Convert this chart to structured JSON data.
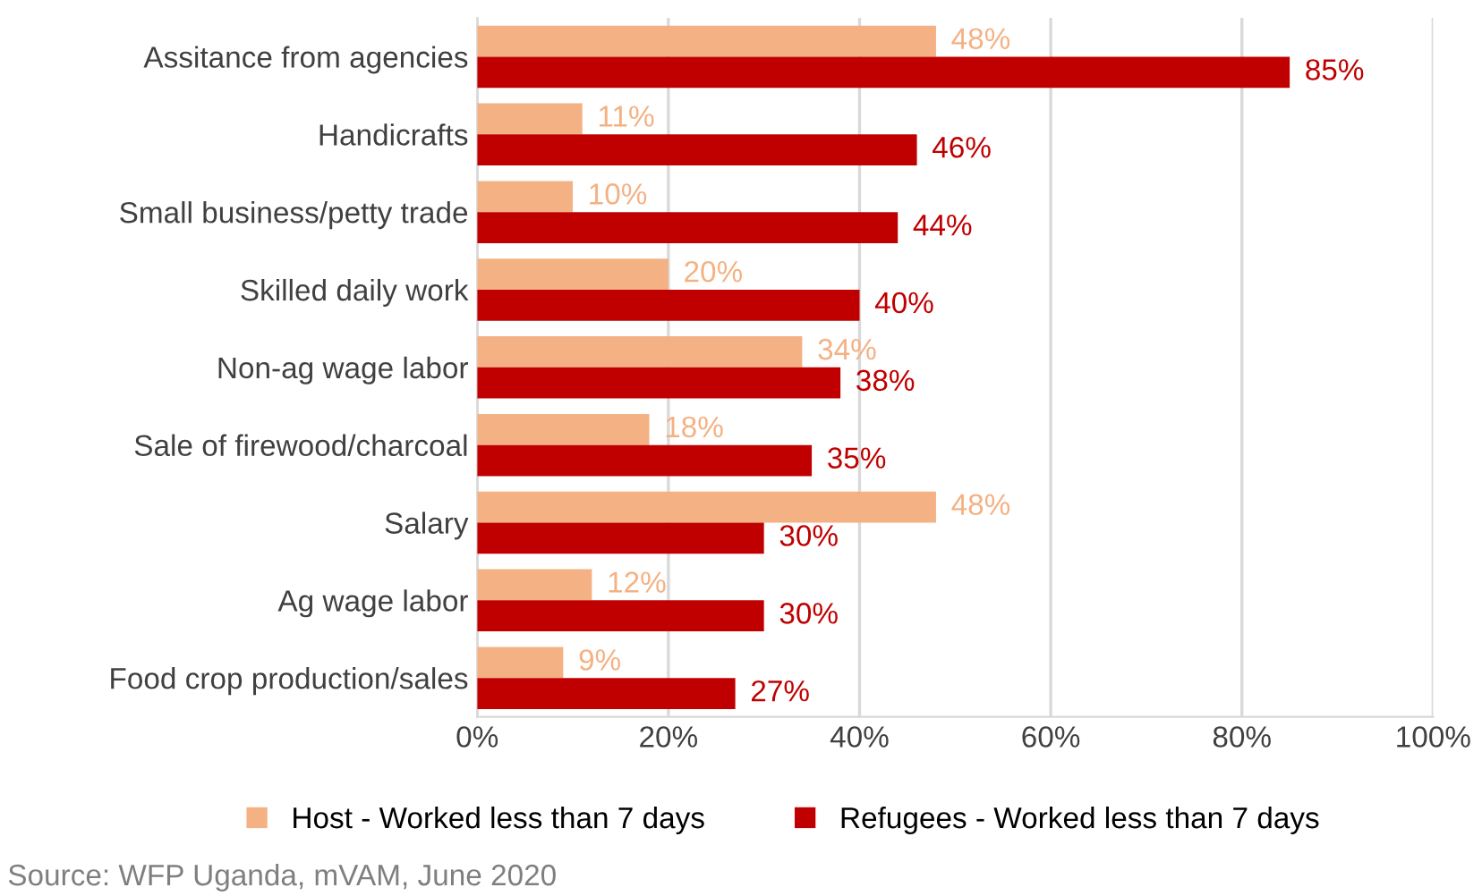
{
  "chart_data": {
    "type": "bar",
    "orientation": "horizontal",
    "categories": [
      "Assitance from agencies",
      "Handicrafts",
      "Small business/petty trade",
      "Skilled daily work",
      "Non-ag wage labor",
      "Sale of firewood/charcoal",
      "Salary",
      "Ag wage labor",
      "Food crop production/sales"
    ],
    "series": [
      {
        "name": "Host - Worked less than 7 days",
        "color": "#f4b183",
        "values": [
          48,
          11,
          10,
          20,
          34,
          18,
          48,
          12,
          9
        ],
        "value_labels": [
          "48%",
          "11%",
          "10%",
          "20%",
          "34%",
          "18%",
          "48%",
          "12%",
          "9%"
        ]
      },
      {
        "name": "Refugees - Worked less than 7 days",
        "color": "#c00000",
        "values": [
          85,
          46,
          44,
          40,
          38,
          35,
          30,
          30,
          27
        ],
        "value_labels": [
          "85%",
          "46%",
          "44%",
          "40%",
          "38%",
          "35%",
          "30%",
          "30%",
          "27%"
        ]
      }
    ],
    "xlim": [
      0,
      100
    ],
    "xticks": [
      {
        "value": 0,
        "label": "0%"
      },
      {
        "value": 20,
        "label": "20%"
      },
      {
        "value": 40,
        "label": "40%"
      },
      {
        "value": 60,
        "label": "60%"
      },
      {
        "value": 80,
        "label": "80%"
      },
      {
        "value": 100,
        "label": "100%"
      }
    ],
    "grid": "x",
    "legend": "bottom",
    "annotations": [
      "Source: WFP Uganda, mVAM, June 2020"
    ]
  }
}
